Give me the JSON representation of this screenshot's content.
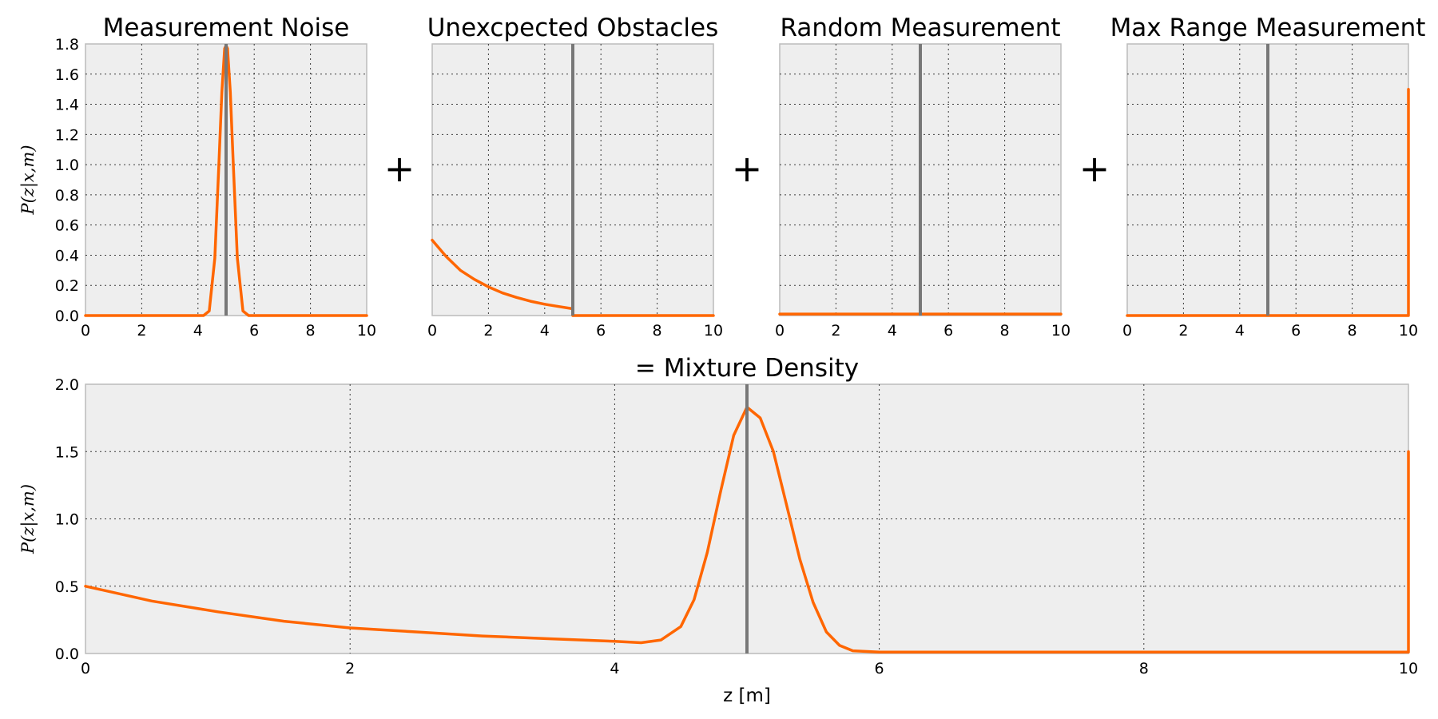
{
  "colors": {
    "curve": "#ff6600",
    "marker": "#777777",
    "panel_bg": "#eeeeee",
    "frame": "#bcbcbc"
  },
  "operators": [
    "+",
    "+",
    "+"
  ],
  "chart_data": [
    {
      "id": "noise",
      "type": "line",
      "title": "Measurement Noise",
      "ylabel": "P(z|x,m)",
      "xlabel": "",
      "xlim": [
        0,
        10
      ],
      "ylim": [
        0,
        1.8
      ],
      "xticks": [
        "0",
        "2",
        "4",
        "6",
        "8",
        "10"
      ],
      "yticks": [
        "0.0",
        "0.2",
        "0.4",
        "0.6",
        "0.8",
        "1.0",
        "1.2",
        "1.4",
        "1.6",
        "1.8"
      ],
      "show_yticks": true,
      "grid": true,
      "marker_x": 5,
      "series": [
        {
          "x": [
            0,
            4.2,
            4.4,
            4.6,
            4.75,
            4.85,
            4.95,
            5.0,
            5.05,
            5.15,
            5.25,
            5.4,
            5.6,
            5.8,
            10
          ],
          "y": [
            0,
            0,
            0.03,
            0.38,
            1.03,
            1.48,
            1.77,
            1.79,
            1.77,
            1.48,
            1.03,
            0.38,
            0.03,
            0,
            0
          ]
        }
      ]
    },
    {
      "id": "obstacles",
      "type": "line",
      "title": "Unexcpected Obstacles",
      "ylabel": "",
      "xlabel": "",
      "xlim": [
        0,
        10
      ],
      "ylim": [
        0,
        1.8
      ],
      "xticks": [
        "0",
        "2",
        "4",
        "6",
        "8",
        "10"
      ],
      "yticks": [],
      "show_yticks": false,
      "grid": true,
      "marker_x": 5,
      "series": [
        {
          "x": [
            0,
            0.5,
            1,
            1.5,
            2,
            2.5,
            3,
            3.5,
            4,
            4.5,
            5,
            5.0,
            10
          ],
          "y": [
            0.5,
            0.39,
            0.3,
            0.24,
            0.19,
            0.15,
            0.12,
            0.095,
            0.075,
            0.06,
            0.045,
            0,
            0
          ]
        }
      ]
    },
    {
      "id": "random",
      "type": "line",
      "title": "Random Measurement",
      "ylabel": "",
      "xlabel": "",
      "xlim": [
        0,
        10
      ],
      "ylim": [
        0,
        1.8
      ],
      "xticks": [
        "0",
        "2",
        "4",
        "6",
        "8",
        "10"
      ],
      "yticks": [],
      "show_yticks": false,
      "grid": true,
      "marker_x": 5,
      "series": [
        {
          "x": [
            0,
            10
          ],
          "y": [
            0.01,
            0.01
          ]
        }
      ]
    },
    {
      "id": "maxrange",
      "type": "line",
      "title": "Max Range Measurement",
      "ylabel": "",
      "xlabel": "",
      "xlim": [
        0,
        10
      ],
      "ylim": [
        0,
        1.8
      ],
      "xticks": [
        "0",
        "2",
        "4",
        "6",
        "8",
        "10"
      ],
      "yticks": [],
      "show_yticks": false,
      "grid": true,
      "marker_x": 5,
      "series": [
        {
          "x": [
            0,
            9.99,
            10,
            10
          ],
          "y": [
            0,
            0,
            0,
            1.5
          ]
        }
      ]
    },
    {
      "id": "mixture",
      "type": "line",
      "title": "= Mixture Density",
      "ylabel": "P(z|x,m)",
      "xlabel": "z [m]",
      "xlim": [
        0,
        10
      ],
      "ylim": [
        0,
        2.0
      ],
      "xticks": [
        "0",
        "2",
        "4",
        "6",
        "8",
        "10"
      ],
      "yticks": [
        "0.0",
        "0.5",
        "1.0",
        "1.5",
        "2.0"
      ],
      "show_yticks": true,
      "grid": true,
      "marker_x": 5,
      "series": [
        {
          "x": [
            0,
            0.5,
            1,
            1.5,
            2,
            2.5,
            3,
            3.5,
            4,
            4.2,
            4.35,
            4.5,
            4.6,
            4.7,
            4.8,
            4.9,
            5.0,
            5.1,
            5.2,
            5.3,
            5.4,
            5.5,
            5.6,
            5.7,
            5.8,
            6.0,
            8,
            9.99,
            10,
            10
          ],
          "y": [
            0.5,
            0.39,
            0.31,
            0.24,
            0.19,
            0.16,
            0.13,
            0.11,
            0.09,
            0.08,
            0.1,
            0.2,
            0.4,
            0.75,
            1.2,
            1.62,
            1.83,
            1.75,
            1.5,
            1.1,
            0.7,
            0.38,
            0.16,
            0.06,
            0.02,
            0.01,
            0.01,
            0.01,
            0.01,
            1.5
          ]
        }
      ]
    }
  ]
}
